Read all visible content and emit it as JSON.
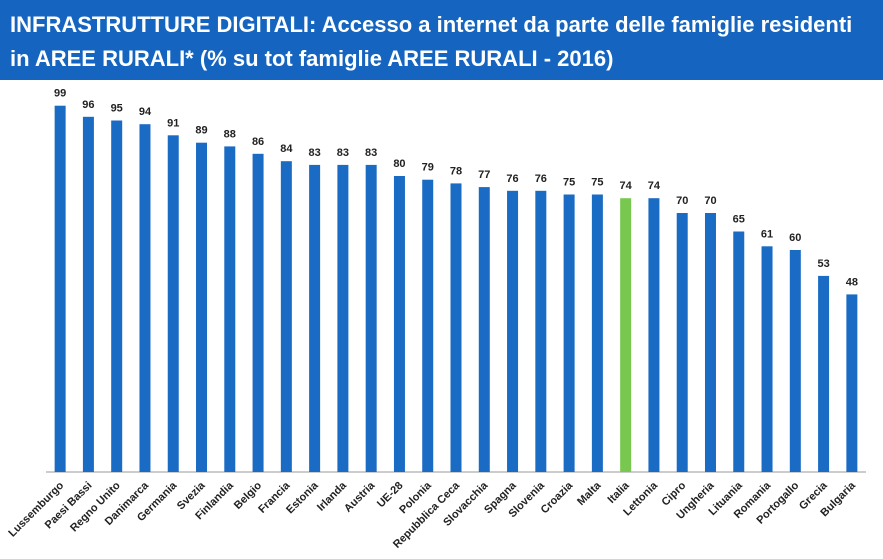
{
  "chart_data": {
    "type": "bar",
    "title": [
      "INFRASTRUTTURE DIGITALI: Accesso a internet da parte delle famiglie residenti",
      "in AREE RURALI* (% su tot famiglie AREE RURALI - 2016)"
    ],
    "categories": [
      "Lussemburgo",
      "Paesi Bassi",
      "Regno Unito",
      "Danimarca",
      "Germania",
      "Svezia",
      "Finlandia",
      "Belgio",
      "Francia",
      "Estonia",
      "Irlanda",
      "Austria",
      "UE-28",
      "Polonia",
      "Repubblica Ceca",
      "Slovacchia",
      "Spagna",
      "Slovenia",
      "Croazia",
      "Malta",
      "Italia",
      "Lettonia",
      "Cipro",
      "Ungheria",
      "Lituania",
      "Romania",
      "Portogallo",
      "Grecia",
      "Bulgaria"
    ],
    "values": [
      99,
      96,
      95,
      94,
      91,
      89,
      88,
      86,
      84,
      83,
      83,
      83,
      80,
      79,
      78,
      77,
      76,
      76,
      75,
      75,
      74,
      74,
      70,
      70,
      65,
      61,
      60,
      53,
      48
    ],
    "colors": [
      "#1a6bc4",
      "#1a6bc4",
      "#1a6bc4",
      "#1a6bc4",
      "#1a6bc4",
      "#1a6bc4",
      "#1a6bc4",
      "#1a6bc4",
      "#1a6bc4",
      "#1a6bc4",
      "#1a6bc4",
      "#1a6bc4",
      "#1a6bc4",
      "#1a6bc4",
      "#1a6bc4",
      "#1a6bc4",
      "#1a6bc4",
      "#1a6bc4",
      "#1a6bc4",
      "#1a6bc4",
      "#78c850",
      "#1a6bc4",
      "#1a6bc4",
      "#1a6bc4",
      "#1a6bc4",
      "#1a6bc4",
      "#1a6bc4",
      "#1a6bc4",
      "#1a6bc4"
    ]
  }
}
